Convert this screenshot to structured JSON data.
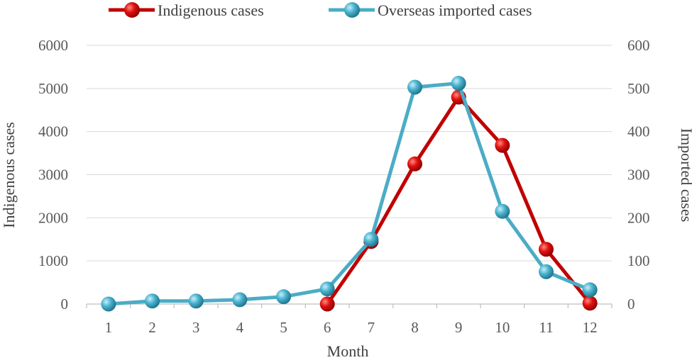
{
  "chart_data": {
    "type": "line",
    "xlabel": "Month",
    "ylabel_left": "Indigenous cases",
    "ylabel_right": "Imported cases",
    "categories": [
      "1",
      "2",
      "3",
      "4",
      "5",
      "6",
      "7",
      "8",
      "9",
      "10",
      "11",
      "12"
    ],
    "ylim_left": [
      0,
      6000
    ],
    "yticks_left": [
      "0",
      "1000",
      "2000",
      "3000",
      "4000",
      "5000",
      "6000"
    ],
    "ylim_right": [
      0,
      600
    ],
    "yticks_right": [
      "0",
      "100",
      "200",
      "300",
      "400",
      "500",
      "600"
    ],
    "grid": true,
    "legend_position": "top",
    "series": [
      {
        "name": "Indigenous cases",
        "axis": "left",
        "color": "#C00000",
        "x": [
          6,
          7,
          8,
          9,
          10,
          11,
          12
        ],
        "values": [
          0,
          1450,
          3250,
          4800,
          3680,
          1270,
          20
        ]
      },
      {
        "name": "Overseas imported cases",
        "axis": "right",
        "color": "#4BACC6",
        "x": [
          1,
          2,
          3,
          4,
          5,
          6,
          7,
          8,
          9,
          10,
          11,
          12
        ],
        "values": [
          0,
          7,
          7,
          10,
          17,
          35,
          150,
          503,
          512,
          215,
          75,
          33
        ]
      }
    ]
  }
}
